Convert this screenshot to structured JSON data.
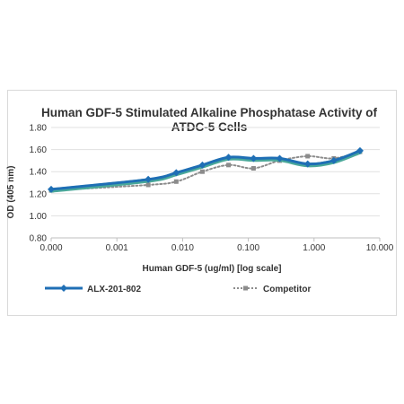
{
  "chart_data": {
    "type": "line",
    "title_lines": [
      "Human GDF-5 Stimulated Alkaline Phosphatase Activity of",
      "ATDC-5 Cells"
    ],
    "xlabel": "Human GDF-5 (ug/ml) [log scale]",
    "ylabel": "OD (405 nm)",
    "x_scale": "log",
    "x_ticks": [
      "0.000",
      "0.001",
      "0.010",
      "0.100",
      "1.000",
      "10.000"
    ],
    "y_ticks": [
      "0.80",
      "1.00",
      "1.20",
      "1.40",
      "1.60",
      "1.80"
    ],
    "ylim": [
      0.8,
      1.8
    ],
    "grid": "horizontal",
    "legend_position": "bottom",
    "x": [
      0.0001,
      0.003,
      0.008,
      0.02,
      0.05,
      0.12,
      0.3,
      0.8,
      2.0,
      5.0
    ],
    "series": [
      {
        "name": "ALX-201-802",
        "color": "#1f6fb5",
        "style": "solid",
        "marker": "diamond",
        "values": [
          1.24,
          1.33,
          1.39,
          1.46,
          1.53,
          1.52,
          1.52,
          1.47,
          1.5,
          1.59
        ]
      },
      {
        "name": "",
        "color": "#4aa89a",
        "style": "solid",
        "marker": "none",
        "values": [
          1.23,
          1.32,
          1.38,
          1.45,
          1.52,
          1.51,
          1.51,
          1.46,
          1.49,
          1.58
        ]
      },
      {
        "name": "Competitor",
        "color": "#8c8c8c",
        "style": "dotted",
        "marker": "square",
        "values": [
          1.23,
          1.28,
          1.31,
          1.4,
          1.46,
          1.43,
          1.5,
          1.54,
          1.52,
          1.58
        ]
      }
    ]
  }
}
